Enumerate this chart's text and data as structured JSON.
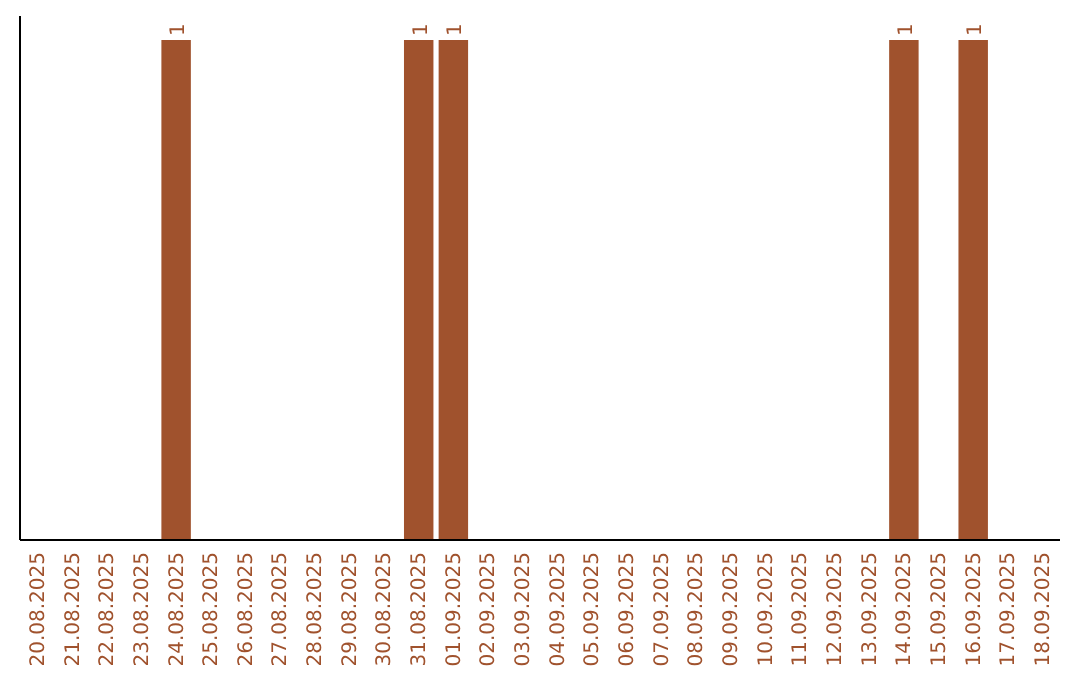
{
  "chart_data": {
    "type": "bar",
    "categories": [
      "20.08.2025",
      "21.08.2025",
      "22.08.2025",
      "23.08.2025",
      "24.08.2025",
      "25.08.2025",
      "26.08.2025",
      "27.08.2025",
      "28.08.2025",
      "29.08.2025",
      "30.08.2025",
      "31.08.2025",
      "01.09.2025",
      "02.09.2025",
      "03.09.2025",
      "04.09.2025",
      "05.09.2025",
      "06.09.2025",
      "07.09.2025",
      "08.09.2025",
      "09.09.2025",
      "10.09.2025",
      "11.09.2025",
      "12.09.2025",
      "13.09.2025",
      "14.09.2025",
      "15.09.2025",
      "16.09.2025",
      "17.09.2025",
      "18.09.2025"
    ],
    "values": [
      0,
      0,
      0,
      0,
      1,
      0,
      0,
      0,
      0,
      0,
      0,
      1,
      1,
      0,
      0,
      0,
      0,
      0,
      0,
      0,
      0,
      0,
      0,
      0,
      0,
      1,
      0,
      1,
      0,
      0
    ],
    "value_labels": [
      null,
      null,
      null,
      null,
      "1",
      null,
      null,
      null,
      null,
      null,
      null,
      "1",
      "1",
      null,
      null,
      null,
      null,
      null,
      null,
      null,
      null,
      null,
      null,
      null,
      null,
      "1",
      null,
      "1",
      null,
      null
    ],
    "color": "#a0522d"
  }
}
